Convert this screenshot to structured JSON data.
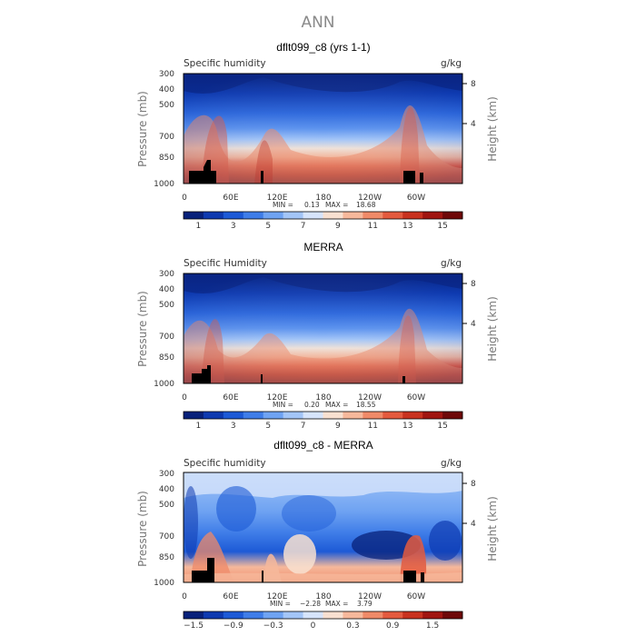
{
  "page_title": "ANN",
  "chart_data": [
    {
      "type": "heatmap",
      "title": "dflt099_c8 (yrs 1-1)",
      "left_label": "Specific humidity",
      "right_label": "g/kg",
      "ylabel": "Pressure (mb)",
      "y2label": "Height (km)",
      "x_ticks": [
        "0",
        "60E",
        "120E",
        "180",
        "120W",
        "60W"
      ],
      "y_ticks": [
        "300",
        "400",
        "500",
        "700",
        "850",
        "1000"
      ],
      "y2_ticks": [
        "8",
        "4"
      ],
      "stats": {
        "min": "0.13",
        "max": "18.68"
      },
      "colorbar_labels": [
        "1",
        "3",
        "5",
        "7",
        "9",
        "11",
        "13",
        "15"
      ],
      "colorbar_colors": [
        "#08217a",
        "#0e3ab0",
        "#1d5ad6",
        "#3f7de8",
        "#6fa3f2",
        "#a3c5f7",
        "#d6e4fb",
        "#f8e0d0",
        "#f6b89b",
        "#ef8a68",
        "#e35a3e",
        "#c8321f",
        "#a01510",
        "#6e0808"
      ]
    },
    {
      "type": "heatmap",
      "title": "MERRA",
      "left_label": "Specific Humidity",
      "right_label": "g/kg",
      "ylabel": "Pressure (mb)",
      "y2label": "Height (km)",
      "x_ticks": [
        "0",
        "60E",
        "120E",
        "180",
        "120W",
        "60W"
      ],
      "y_ticks": [
        "300",
        "400",
        "500",
        "700",
        "850",
        "1000"
      ],
      "y2_ticks": [
        "8",
        "4"
      ],
      "stats": {
        "min": "0.20",
        "max": "18.55"
      },
      "colorbar_labels": [
        "1",
        "3",
        "5",
        "7",
        "9",
        "11",
        "13",
        "15"
      ],
      "colorbar_colors": [
        "#08217a",
        "#0e3ab0",
        "#1d5ad6",
        "#3f7de8",
        "#6fa3f2",
        "#a3c5f7",
        "#d6e4fb",
        "#f8e0d0",
        "#f6b89b",
        "#ef8a68",
        "#e35a3e",
        "#c8321f",
        "#a01510",
        "#6e0808"
      ]
    },
    {
      "type": "heatmap",
      "title": "dflt099_c8 - MERRA",
      "left_label": "Specific humidity",
      "right_label": "g/kg",
      "ylabel": "Pressure (mb)",
      "y2label": "Height (km)",
      "x_ticks": [
        "0",
        "60E",
        "120E",
        "180",
        "120W",
        "60W"
      ],
      "y_ticks": [
        "300",
        "400",
        "500",
        "700",
        "850",
        "1000"
      ],
      "y2_ticks": [
        "8",
        "4"
      ],
      "stats": {
        "min": "−2.28",
        "max": "3.79"
      },
      "colorbar_labels": [
        "−1.5",
        "−0.9",
        "−0.3",
        "0",
        "0.3",
        "0.9",
        "1.5"
      ],
      "colorbar_colors": [
        "#08217a",
        "#0e3ab0",
        "#1d5ad6",
        "#3f7de8",
        "#6fa3f2",
        "#a3c5f7",
        "#d6e4fb",
        "#f8e0d0",
        "#f6b89b",
        "#ef8a68",
        "#e35a3e",
        "#c8321f",
        "#a01510",
        "#6e0808"
      ]
    }
  ]
}
